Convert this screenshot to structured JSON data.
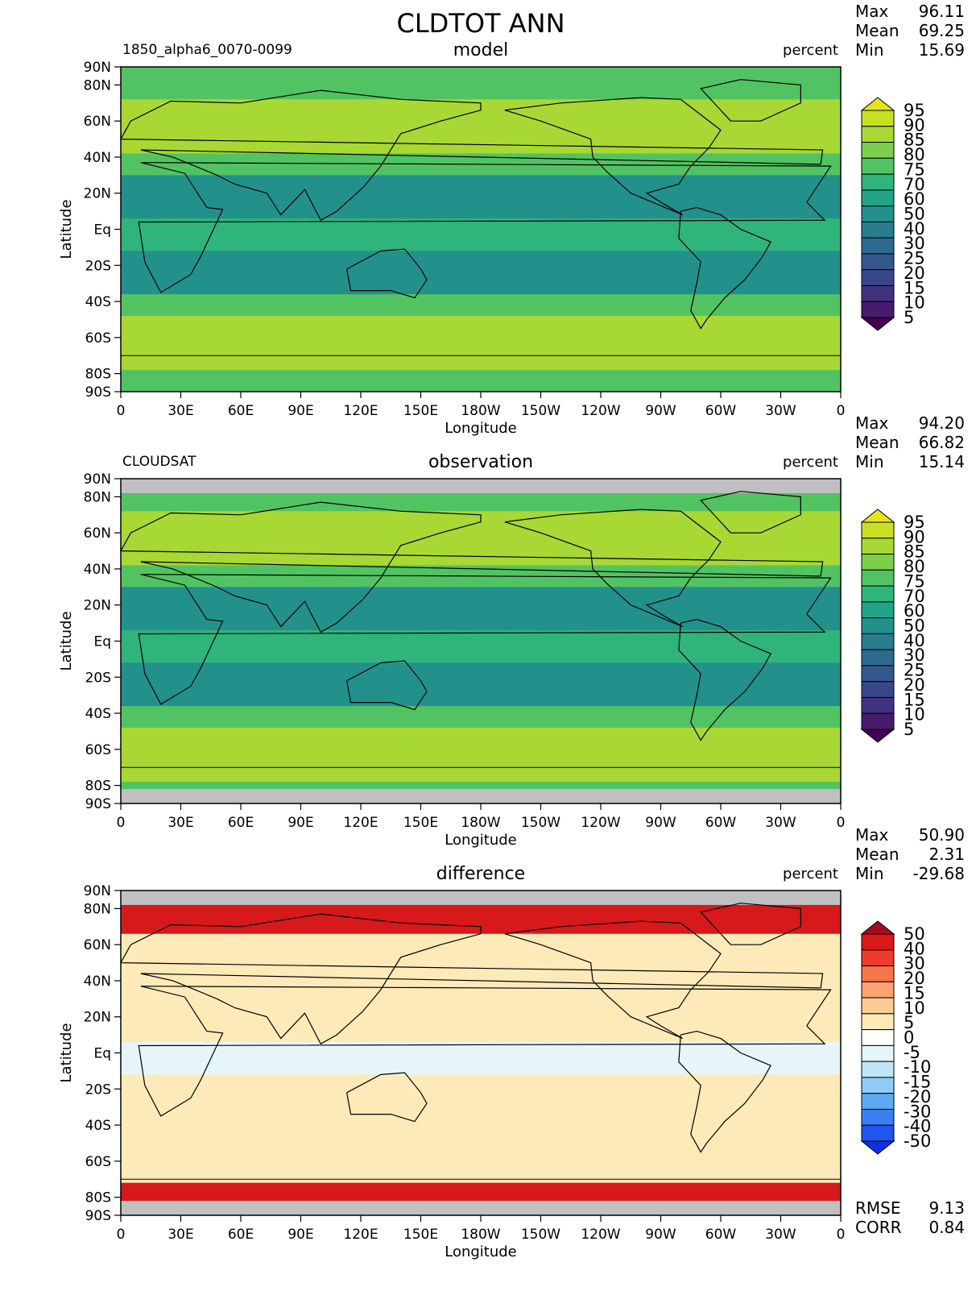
{
  "figure_title": "CLDTOT ANN",
  "chart_data": [
    {
      "type": "heatmap",
      "panel": "model",
      "title": "model",
      "left_label": "1850_alpha6_0070-0099",
      "units": "percent",
      "xlabel": "Longitude",
      "ylabel": "Latitude",
      "x_ticks": [
        "0",
        "30E",
        "60E",
        "90E",
        "120E",
        "150E",
        "180W",
        "150W",
        "120W",
        "90W",
        "60W",
        "30W",
        "0"
      ],
      "y_ticks": [
        "90N",
        "80N",
        "60N",
        "40N",
        "20N",
        "Eq",
        "20S",
        "40S",
        "60S",
        "80S",
        "90S"
      ],
      "xlim": [
        0,
        360
      ],
      "ylim": [
        -90,
        90
      ],
      "stats": [
        {
          "label": "Max",
          "value": "96.11"
        },
        {
          "label": "Mean",
          "value": "69.25"
        },
        {
          "label": "Min",
          "value": "15.69"
        }
      ],
      "colorbar": {
        "levels": [
          "95",
          "90",
          "85",
          "80",
          "75",
          "70",
          "60",
          "50",
          "40",
          "30",
          "25",
          "20",
          "15",
          "10",
          "5"
        ],
        "colors": [
          "#e6e419",
          "#c8df23",
          "#a8d834",
          "#7ccf4d",
          "#52c363",
          "#2fb47b",
          "#21a386",
          "#22918c",
          "#287d8e",
          "#2d6b8e",
          "#33598c",
          "#3a4789",
          "#42327f",
          "#461c6d",
          "#440154"
        ]
      }
    },
    {
      "type": "heatmap",
      "panel": "observation",
      "title": "observation",
      "left_label": "CLOUDSAT",
      "units": "percent",
      "xlabel": "Longitude",
      "ylabel": "Latitude",
      "x_ticks": [
        "0",
        "30E",
        "60E",
        "90E",
        "120E",
        "150E",
        "180W",
        "150W",
        "120W",
        "90W",
        "60W",
        "30W",
        "0"
      ],
      "y_ticks": [
        "90N",
        "80N",
        "60N",
        "40N",
        "20N",
        "Eq",
        "20S",
        "40S",
        "60S",
        "80S",
        "90S"
      ],
      "xlim": [
        0,
        360
      ],
      "ylim": [
        -90,
        90
      ],
      "stats": [
        {
          "label": "Max",
          "value": "94.20"
        },
        {
          "label": "Mean",
          "value": "66.82"
        },
        {
          "label": "Min",
          "value": "15.14"
        }
      ],
      "colorbar": {
        "levels": [
          "95",
          "90",
          "85",
          "80",
          "75",
          "70",
          "60",
          "50",
          "40",
          "30",
          "25",
          "20",
          "15",
          "10",
          "5"
        ],
        "colors": [
          "#e6e419",
          "#c8df23",
          "#a8d834",
          "#7ccf4d",
          "#52c363",
          "#2fb47b",
          "#21a386",
          "#22918c",
          "#287d8e",
          "#2d6b8e",
          "#33598c",
          "#3a4789",
          "#42327f",
          "#461c6d",
          "#440154"
        ]
      }
    },
    {
      "type": "heatmap",
      "panel": "difference",
      "title": "difference",
      "left_label": "",
      "units": "percent",
      "xlabel": "Longitude",
      "ylabel": "Latitude",
      "x_ticks": [
        "0",
        "30E",
        "60E",
        "90E",
        "120E",
        "150E",
        "180W",
        "150W",
        "120W",
        "90W",
        "60W",
        "30W",
        "0"
      ],
      "y_ticks": [
        "90N",
        "80N",
        "60N",
        "40N",
        "20N",
        "Eq",
        "20S",
        "40S",
        "60S",
        "80S",
        "90S"
      ],
      "xlim": [
        0,
        360
      ],
      "ylim": [
        -90,
        90
      ],
      "stats": [
        {
          "label": "Max",
          "value": "50.90"
        },
        {
          "label": "Mean",
          "value": "2.31"
        },
        {
          "label": "Min",
          "value": "-29.68"
        }
      ],
      "extra_stats": [
        {
          "label": "RMSE",
          "value": "9.13"
        },
        {
          "label": "CORR",
          "value": "0.84"
        }
      ],
      "colorbar": {
        "levels": [
          "50",
          "40",
          "30",
          "20",
          "15",
          "10",
          "5",
          "0",
          "-5",
          "-10",
          "-15",
          "-20",
          "-30",
          "-40",
          "-50"
        ],
        "colors": [
          "#a50b1e",
          "#d7191c",
          "#ee3b2f",
          "#f7754a",
          "#fca273",
          "#fdcb94",
          "#feeab9",
          "#ffffff",
          "#e6f5f7",
          "#c1e6f7",
          "#8fcdf5",
          "#5eaaf2",
          "#3a7ef0",
          "#2255ee",
          "#1030e8"
        ]
      }
    }
  ]
}
